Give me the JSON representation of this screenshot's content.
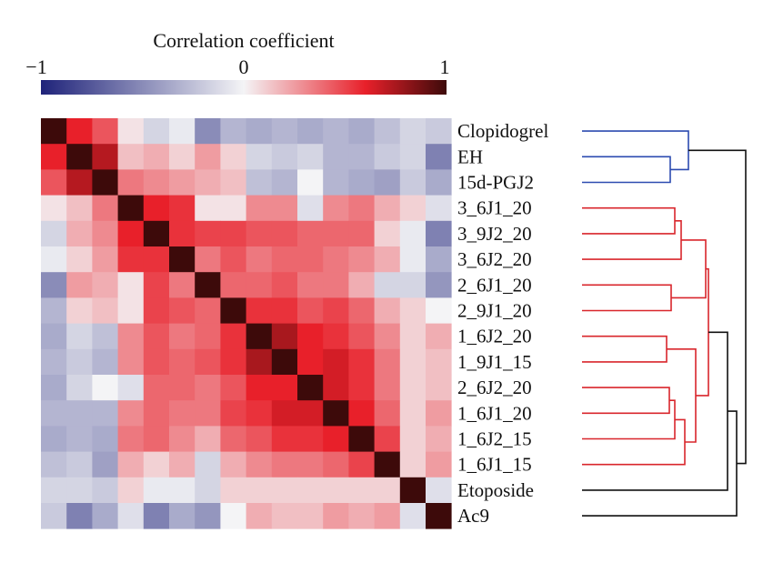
{
  "chart_data": {
    "type": "heatmap",
    "title": "",
    "colorbar": {
      "title": "Correlation coefficient",
      "min": -1,
      "max": 1,
      "ticks": [
        {
          "value": -1,
          "label": "−1"
        },
        {
          "value": 0,
          "label": "0"
        },
        {
          "value": 1,
          "label": "1"
        }
      ],
      "colors": {
        "negative": "#1f237a",
        "neutral": "#f4f4f6",
        "mid_positive": "#e8202a",
        "positive": "#3d0a0a"
      }
    },
    "labels": [
      "Clopidogrel",
      "EH",
      "15d-PGJ2",
      "3_6J1_20",
      "3_9J2_20",
      "3_6J2_20",
      "2_6J1_20",
      "2_9J1_20",
      "1_6J2_20",
      "1_9J1_15",
      "2_6J2_20",
      "1_6J1_20",
      "1_6J2_15",
      "1_6J1_15",
      "Etoposide",
      "Ac9"
    ],
    "matrix": [
      [
        1.0,
        0.6,
        0.45,
        0.05,
        -0.15,
        -0.05,
        -0.5,
        -0.3,
        -0.35,
        -0.3,
        -0.35,
        -0.3,
        -0.35,
        -0.25,
        -0.15,
        -0.2
      ],
      [
        0.6,
        1.0,
        0.72,
        0.15,
        0.2,
        0.1,
        0.25,
        0.1,
        -0.15,
        -0.2,
        -0.15,
        -0.3,
        -0.3,
        -0.2,
        -0.15,
        -0.55
      ],
      [
        0.45,
        0.72,
        1.0,
        0.35,
        0.3,
        0.25,
        0.2,
        0.15,
        -0.25,
        -0.3,
        0.0,
        -0.3,
        -0.35,
        -0.4,
        -0.2,
        -0.35
      ],
      [
        0.05,
        0.15,
        0.35,
        1.0,
        0.6,
        0.55,
        0.05,
        0.05,
        0.3,
        0.3,
        -0.1,
        0.3,
        0.35,
        0.2,
        0.1,
        -0.1
      ],
      [
        -0.15,
        0.2,
        0.3,
        0.6,
        1.0,
        0.55,
        0.5,
        0.5,
        0.45,
        0.45,
        0.4,
        0.4,
        0.4,
        0.1,
        -0.05,
        -0.55
      ],
      [
        -0.05,
        0.1,
        0.25,
        0.55,
        0.55,
        1.0,
        0.35,
        0.45,
        0.35,
        0.4,
        0.4,
        0.35,
        0.3,
        0.2,
        -0.05,
        -0.35
      ],
      [
        -0.5,
        0.25,
        0.2,
        0.05,
        0.5,
        0.35,
        1.0,
        0.4,
        0.4,
        0.45,
        0.35,
        0.35,
        0.2,
        -0.15,
        -0.15,
        -0.45
      ],
      [
        -0.3,
        0.1,
        0.15,
        0.05,
        0.5,
        0.45,
        0.4,
        1.0,
        0.55,
        0.55,
        0.45,
        0.5,
        0.4,
        0.2,
        0.1,
        0.0
      ],
      [
        -0.35,
        -0.15,
        -0.25,
        0.3,
        0.45,
        0.35,
        0.4,
        0.55,
        1.0,
        0.75,
        0.6,
        0.55,
        0.45,
        0.3,
        0.1,
        0.2
      ],
      [
        -0.3,
        -0.2,
        -0.3,
        0.3,
        0.45,
        0.4,
        0.45,
        0.55,
        0.75,
        1.0,
        0.6,
        0.65,
        0.55,
        0.35,
        0.1,
        0.15
      ],
      [
        -0.35,
        -0.15,
        0.0,
        -0.1,
        0.4,
        0.4,
        0.35,
        0.45,
        0.6,
        0.6,
        1.0,
        0.65,
        0.55,
        0.35,
        0.1,
        0.15
      ],
      [
        -0.3,
        -0.3,
        -0.3,
        0.3,
        0.4,
        0.35,
        0.35,
        0.5,
        0.55,
        0.65,
        0.65,
        1.0,
        0.6,
        0.4,
        0.1,
        0.25
      ],
      [
        -0.35,
        -0.3,
        -0.35,
        0.35,
        0.4,
        0.3,
        0.2,
        0.4,
        0.45,
        0.55,
        0.55,
        0.6,
        1.0,
        0.5,
        0.1,
        0.2
      ],
      [
        -0.25,
        -0.2,
        -0.4,
        0.2,
        0.1,
        0.2,
        -0.15,
        0.2,
        0.3,
        0.35,
        0.35,
        0.4,
        0.5,
        1.0,
        0.1,
        0.25
      ],
      [
        -0.15,
        -0.15,
        -0.2,
        0.1,
        -0.05,
        -0.05,
        -0.15,
        0.1,
        0.1,
        0.1,
        0.1,
        0.1,
        0.1,
        0.1,
        1.0,
        -0.1
      ],
      [
        -0.2,
        -0.55,
        -0.35,
        -0.1,
        -0.55,
        -0.35,
        -0.45,
        0.0,
        0.2,
        0.15,
        0.15,
        0.25,
        0.2,
        0.25,
        -0.1,
        1.0
      ]
    ],
    "dendrogram": {
      "clusters": [
        {
          "name": "blue",
          "color": "#2c4bb0",
          "leaves": [
            "Clopidogrel",
            "EH",
            "15d-PGJ2"
          ]
        },
        {
          "name": "red",
          "color": "#d9262c",
          "leaves": [
            "3_6J1_20",
            "3_9J2_20",
            "3_6J2_20",
            "2_6J1_20",
            "2_9J1_20",
            "1_6J2_20",
            "1_9J1_15",
            "2_6J2_20",
            "1_6J1_20",
            "1_6J2_15",
            "1_6J1_15"
          ]
        },
        {
          "name": "black",
          "color": "#111111",
          "leaves": [
            "Etoposide",
            "Ac9"
          ]
        }
      ]
    },
    "xlabel": "",
    "ylabel": ""
  }
}
